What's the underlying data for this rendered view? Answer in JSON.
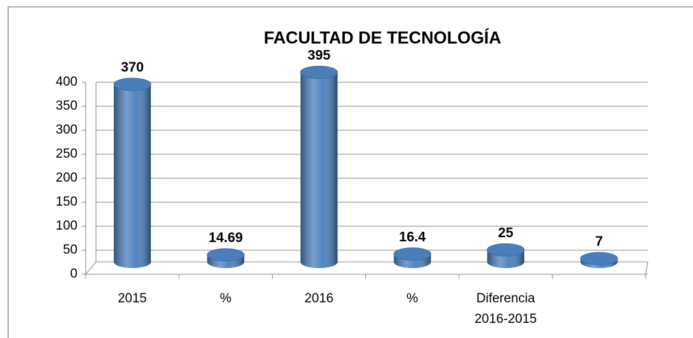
{
  "chart_data": {
    "type": "bar",
    "title": "FACULTAD DE TECNOLOGÍA",
    "categories": [
      "2015",
      "%",
      "2016",
      "%",
      "Diferencia 2016-2015",
      null
    ],
    "values": [
      370,
      14.69,
      395,
      16.4,
      25,
      7
    ],
    "color": "#4a7ebb",
    "ylim": [
      0,
      400
    ],
    "yticks": [
      0,
      50,
      100,
      150,
      200,
      250,
      300,
      350,
      400
    ],
    "grid": true
  }
}
